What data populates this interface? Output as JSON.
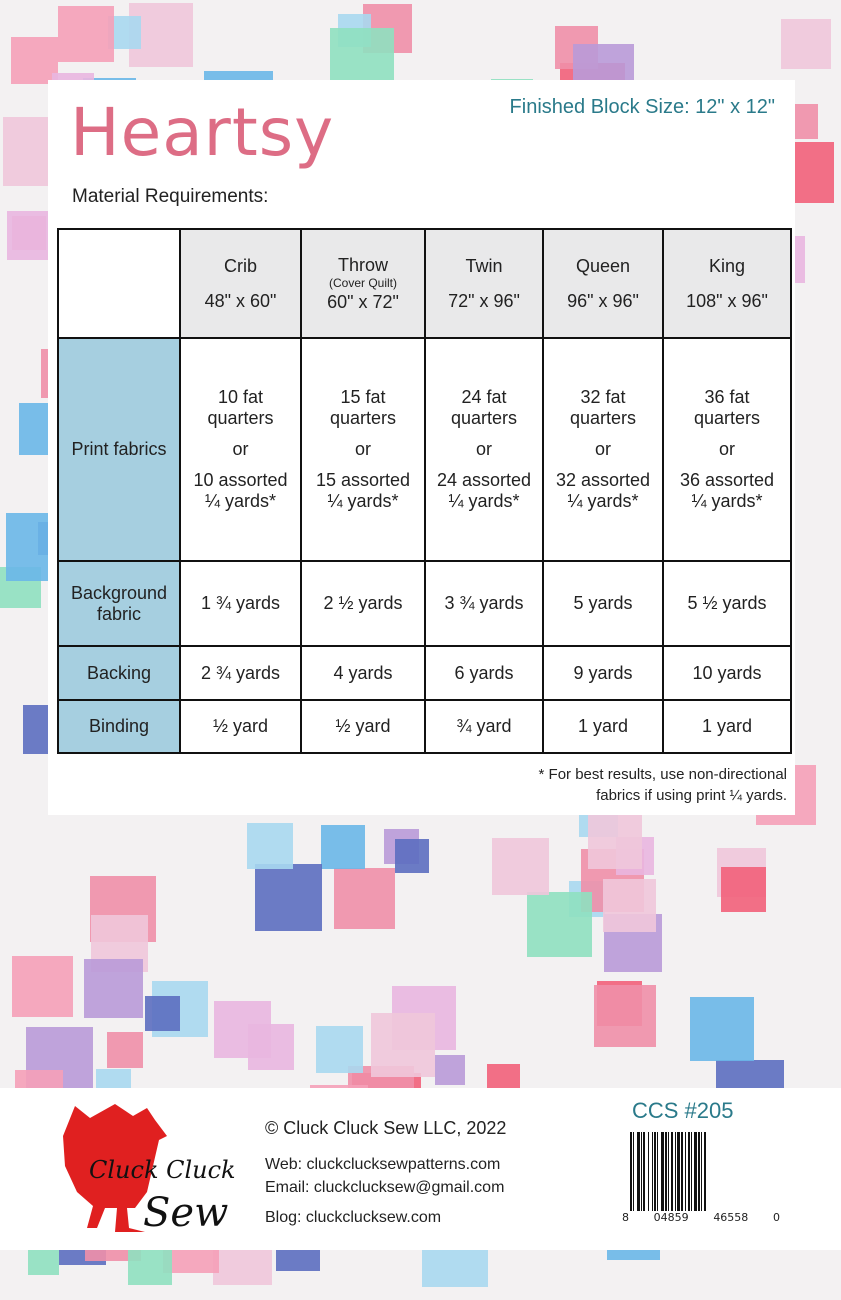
{
  "title": "Heartsy",
  "finished_block_size": "Finished Block Size:  12\" x 12\"",
  "material_requirements_label": "Material Requirements:",
  "table": {
    "columns": [
      {
        "name": "Crib",
        "note": "",
        "size": "48\" x 60\""
      },
      {
        "name": "Throw",
        "note": "(Cover Quilt)",
        "size": "60\" x 72\""
      },
      {
        "name": "Twin",
        "note": "",
        "size": "72\" x 96\""
      },
      {
        "name": "Queen",
        "note": "",
        "size": "96\" x 96\""
      },
      {
        "name": "King",
        "note": "",
        "size": "108\" x 96\""
      }
    ],
    "rows": [
      {
        "label": "Print fabrics",
        "cells": [
          [
            "10 fat",
            "quarters",
            "or",
            "10 assorted",
            "¼ yards*"
          ],
          [
            "15 fat",
            "quarters",
            "or",
            "15 assorted",
            "¼ yards*"
          ],
          [
            "24 fat",
            "quarters",
            "or",
            "24 assorted",
            "¼ yards*"
          ],
          [
            "32 fat",
            "quarters",
            "or",
            "32 assorted",
            "¼ yards*"
          ],
          [
            "36 fat",
            "quarters",
            "or",
            "36 assorted",
            "¼ yards*"
          ]
        ]
      },
      {
        "label": "Background fabric",
        "cells": [
          "1 ¾ yards",
          "2 ½ yards",
          "3 ¾ yards",
          "5 yards",
          "5 ½ yards"
        ]
      },
      {
        "label": "Backing",
        "cells": [
          "2 ¾ yards",
          "4 yards",
          "6 yards",
          "9 yards",
          "10 yards"
        ]
      },
      {
        "label": "Binding",
        "cells": [
          "½ yard",
          "½ yard",
          "¾ yard",
          "1 yard",
          "1 yard"
        ]
      }
    ]
  },
  "footnote": [
    "* For best results, use non-directional",
    "fabrics if using print ¼ yards."
  ],
  "footer": {
    "logo_text": "Cluck Cluck Sew",
    "copyright": "© Cluck Cluck Sew LLC, 2022",
    "web": "Web: cluckclucksewpatterns.com",
    "email": "Email: cluckclucksew@gmail.com",
    "blog": "Blog:  cluckclucksew.com",
    "pattern_number": "CCS #205",
    "barcode_digits": [
      "8",
      "04859",
      "46558",
      "0"
    ]
  },
  "colors": {
    "title": "#dd6d85",
    "accent": "#2a7a8a",
    "row_header": "#a6cfe0",
    "header_bg": "#e9e9ea",
    "logo_red": "#e02020"
  }
}
